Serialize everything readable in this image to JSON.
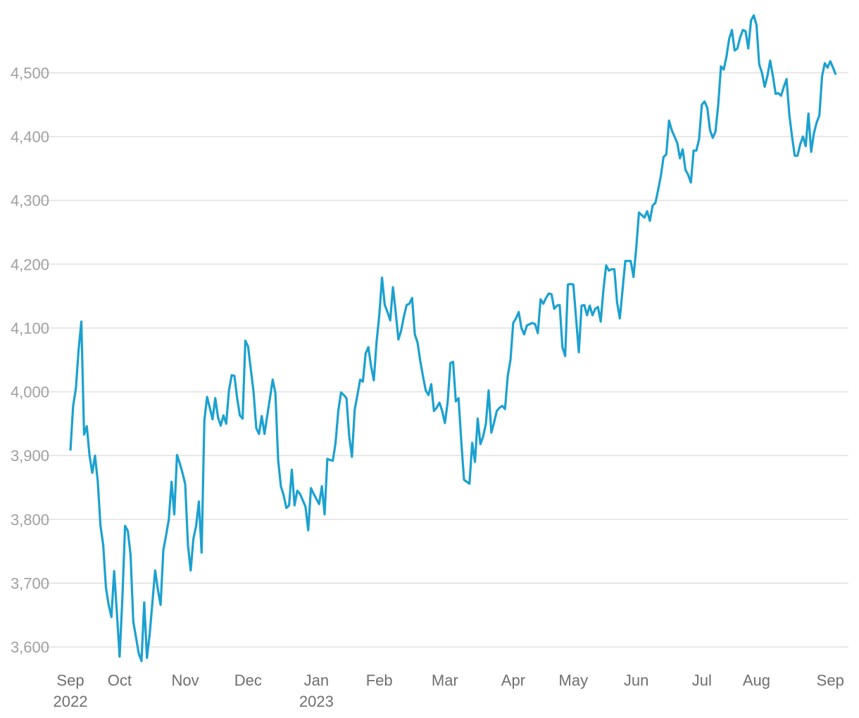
{
  "chart_data": {
    "type": "line",
    "categories": [
      "Sep 2022",
      null,
      null,
      null,
      null,
      null,
      null,
      null,
      null,
      null,
      null,
      null,
      null,
      null,
      null,
      null,
      null,
      null,
      "Oct",
      null,
      null,
      null,
      null,
      null,
      null,
      null,
      null,
      null,
      null,
      null,
      null,
      null,
      null,
      null,
      null,
      null,
      null,
      null,
      null,
      null,
      null,
      null,
      "Nov",
      null,
      null,
      null,
      null,
      null,
      null,
      null,
      null,
      null,
      null,
      null,
      null,
      null,
      null,
      null,
      null,
      null,
      null,
      null,
      null,
      null,
      null,
      "Dec",
      null,
      null,
      null,
      null,
      null,
      null,
      null,
      null,
      null,
      null,
      null,
      null,
      null,
      null,
      null,
      null,
      null,
      null,
      null,
      null,
      null,
      null,
      null,
      null,
      "Jan 2023",
      null,
      null,
      null,
      null,
      null,
      null,
      null,
      null,
      null,
      null,
      null,
      null,
      null,
      null,
      null,
      null,
      null,
      null,
      null,
      null,
      null,
      null,
      "Feb",
      null,
      null,
      null,
      null,
      null,
      null,
      null,
      null,
      null,
      null,
      null,
      null,
      null,
      null,
      null,
      null,
      null,
      null,
      null,
      null,
      null,
      null,
      null,
      "Mar",
      null,
      null,
      null,
      null,
      null,
      null,
      null,
      null,
      null,
      null,
      null,
      null,
      null,
      null,
      null,
      null,
      null,
      null,
      null,
      null,
      null,
      null,
      null,
      null,
      "Apr",
      null,
      null,
      null,
      null,
      null,
      null,
      null,
      null,
      null,
      null,
      null,
      null,
      null,
      null,
      null,
      null,
      null,
      null,
      null,
      null,
      null,
      "May",
      null,
      null,
      null,
      null,
      null,
      null,
      null,
      null,
      null,
      null,
      null,
      null,
      null,
      null,
      null,
      null,
      null,
      null,
      null,
      null,
      null,
      null,
      "Jun",
      null,
      null,
      null,
      null,
      null,
      null,
      null,
      null,
      null,
      null,
      null,
      null,
      null,
      null,
      null,
      null,
      null,
      null,
      null,
      null,
      null,
      null,
      null,
      "Jul",
      null,
      null,
      null,
      null,
      null,
      null,
      null,
      null,
      null,
      null,
      null,
      null,
      null,
      null,
      null,
      null,
      null,
      null,
      null,
      "Aug",
      null,
      null,
      null,
      null,
      null,
      null,
      null,
      null,
      null,
      null,
      null,
      null,
      null,
      null,
      null,
      null,
      null,
      null,
      null,
      null,
      null,
      null,
      null,
      null,
      null,
      null,
      "Sep",
      null,
      null
    ],
    "series": [
      {
        "color": "#1ba1d0",
        "values": [
          3908,
          3978,
          4005,
          4066,
          4110,
          3933,
          3946,
          3900,
          3873,
          3900,
          3860,
          3790,
          3760,
          3693,
          3666,
          3647,
          3719,
          3654,
          3585,
          3675,
          3790,
          3782,
          3745,
          3640,
          3615,
          3590,
          3578,
          3670,
          3583,
          3620,
          3670,
          3720,
          3690,
          3666,
          3752,
          3775,
          3800,
          3859,
          3808,
          3901,
          3888,
          3873,
          3855,
          3760,
          3720,
          3770,
          3790,
          3828,
          3748,
          3955,
          3992,
          3975,
          3957,
          3990,
          3960,
          3947,
          3963,
          3950,
          4002,
          4026,
          4025,
          3990,
          3963,
          3958,
          4080,
          4071,
          4035,
          4000,
          3943,
          3934,
          3962,
          3934,
          3962,
          3990,
          4019,
          3998,
          3893,
          3852,
          3838,
          3818,
          3822,
          3878,
          3822,
          3845,
          3840,
          3830,
          3820,
          3783,
          3849,
          3840,
          3832,
          3824,
          3852,
          3808,
          3895,
          3893,
          3892,
          3920,
          3970,
          3999,
          3995,
          3990,
          3930,
          3898,
          3972,
          3995,
          4019,
          4016,
          4060,
          4070,
          4040,
          4018,
          4078,
          4120,
          4179,
          4136,
          4125,
          4112,
          4164,
          4125,
          4082,
          4096,
          4118,
          4136,
          4138,
          4147,
          4090,
          4077,
          4048,
          4024,
          4002,
          3995,
          4012,
          3970,
          3975,
          3983,
          3970,
          3951,
          3983,
          4045,
          4047,
          3985,
          3990,
          3922,
          3862,
          3859,
          3856,
          3920,
          3890,
          3958,
          3918,
          3930,
          3950,
          4002,
          3936,
          3952,
          3970,
          3975,
          3978,
          3973,
          4025,
          4050,
          4108,
          4115,
          4125,
          4100,
          4090,
          4104,
          4106,
          4108,
          4106,
          4092,
          4145,
          4138,
          4147,
          4154,
          4153,
          4130,
          4135,
          4136,
          4070,
          4056,
          4168,
          4169,
          4168,
          4115,
          4062,
          4135,
          4136,
          4120,
          4135,
          4120,
          4130,
          4133,
          4110,
          4160,
          4198,
          4190,
          4192,
          4192,
          4140,
          4115,
          4160,
          4205,
          4205,
          4205,
          4180,
          4225,
          4281,
          4277,
          4273,
          4283,
          4268,
          4292,
          4296,
          4316,
          4338,
          4368,
          4372,
          4425,
          4410,
          4400,
          4390,
          4366,
          4380,
          4348,
          4340,
          4328,
          4378,
          4378,
          4396,
          4450,
          4455,
          4445,
          4410,
          4398,
          4408,
          4450,
          4510,
          4505,
          4525,
          4553,
          4567,
          4535,
          4538,
          4555,
          4567,
          4565,
          4538,
          4582,
          4590,
          4575,
          4513,
          4500,
          4478,
          4495,
          4519,
          4495,
          4467,
          4468,
          4464,
          4478,
          4490,
          4435,
          4400,
          4370,
          4370,
          4388,
          4400,
          4385,
          4436,
          4376,
          4405,
          4422,
          4433,
          4495,
          4515,
          4508,
          4518,
          4508,
          4497
        ]
      }
    ],
    "ylim": [
      3566,
      4603
    ],
    "yticks": [
      {
        "value": 3600,
        "label": "3,600"
      },
      {
        "value": 3700,
        "label": "3,700"
      },
      {
        "value": 3800,
        "label": "3,800"
      },
      {
        "value": 3900,
        "label": "3,900"
      },
      {
        "value": 4000,
        "label": "4,000"
      },
      {
        "value": 4100,
        "label": "4,100"
      },
      {
        "value": 4200,
        "label": "4,200"
      },
      {
        "value": 4300,
        "label": "4,300"
      },
      {
        "value": 4400,
        "label": "4,400"
      },
      {
        "value": 4500,
        "label": "4,500"
      }
    ],
    "grid": true
  }
}
